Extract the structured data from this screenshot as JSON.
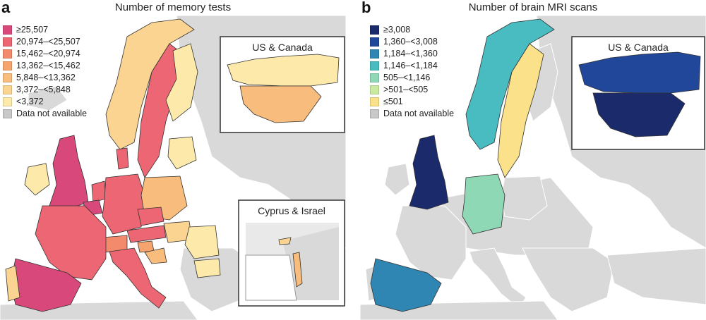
{
  "colors": {
    "land": "#d9d9d9",
    "land_stroke": "#ffffff",
    "border": "#333333"
  },
  "panel_a": {
    "letter": "a",
    "title": "Number of memory tests",
    "legend": [
      {
        "label": "≥25,507",
        "color": "#d9487a"
      },
      {
        "label": "20,974–<25,507",
        "color": "#ec6673"
      },
      {
        "label": "15,462–<20,974",
        "color": "#f28a6b"
      },
      {
        "label": "13,362–<15,462",
        "color": "#f6a46e"
      },
      {
        "label": "5,848–<13,362",
        "color": "#f8bc7c"
      },
      {
        "label": "3,372–<5,848",
        "color": "#fbd491"
      },
      {
        "label": "<3,372",
        "color": "#fdeaab"
      },
      {
        "label": "Data not available",
        "color": "#c8c8c8"
      }
    ],
    "inset_us_title": "US & Canada",
    "inset_cyprus_title": "Cyprus & Israel",
    "country_colors": {
      "uk": "#d9487a",
      "ireland": "#fdeaab",
      "norway": "#fbd491",
      "sweden": "#ec6673",
      "finland": "#fdeaab",
      "denmark": "#ec6673",
      "netherlands": "#ec6673",
      "belgium": "#d9487a",
      "germany": "#ec6673",
      "poland": "#f8bc7c",
      "france": "#ec6673",
      "spain": "#d9487a",
      "portugal": "#fbd491",
      "italy": "#ec6673",
      "austria": "#ec6673",
      "czechia": "#ec6673",
      "switzerland": "#f28a6b",
      "hungary": "#fbd491",
      "romania": "#fdeaab",
      "baltics": "#fdeaab",
      "slovenia": "#f6a46e",
      "croatia": "#f8bc7c",
      "bulgaria": "#fdeaab",
      "canada": "#fdeaab",
      "usa": "#f8bc7c",
      "cyprus": "#fbd491",
      "israel": "#f8bc7c"
    }
  },
  "panel_b": {
    "letter": "b",
    "title": "Number of brain MRI scans",
    "legend": [
      {
        "label": "≥3,008",
        "color": "#1b2a6b"
      },
      {
        "label": "1,360–<3,008",
        "color": "#21479a"
      },
      {
        "label": "1,184–<1,360",
        "color": "#2f86b3"
      },
      {
        "label": "1,146–<1,184",
        "color": "#48bcc0"
      },
      {
        "label": "505–<1,146",
        "color": "#8fd8b5"
      },
      {
        "label": ">501–<505",
        "color": "#c9eaa0"
      },
      {
        "label": "≤501",
        "color": "#fbe28a"
      },
      {
        "label": "Data not available",
        "color": "#c8c8c8"
      }
    ],
    "inset_us_title": "US & Canada",
    "country_colors": {
      "uk": "#1b2a6b",
      "norway": "#48bcc0",
      "sweden": "#fbe28a",
      "germany": "#8fd8b5",
      "spain": "#2f86b3",
      "canada": "#21479a",
      "usa": "#1b2a6b"
    }
  }
}
